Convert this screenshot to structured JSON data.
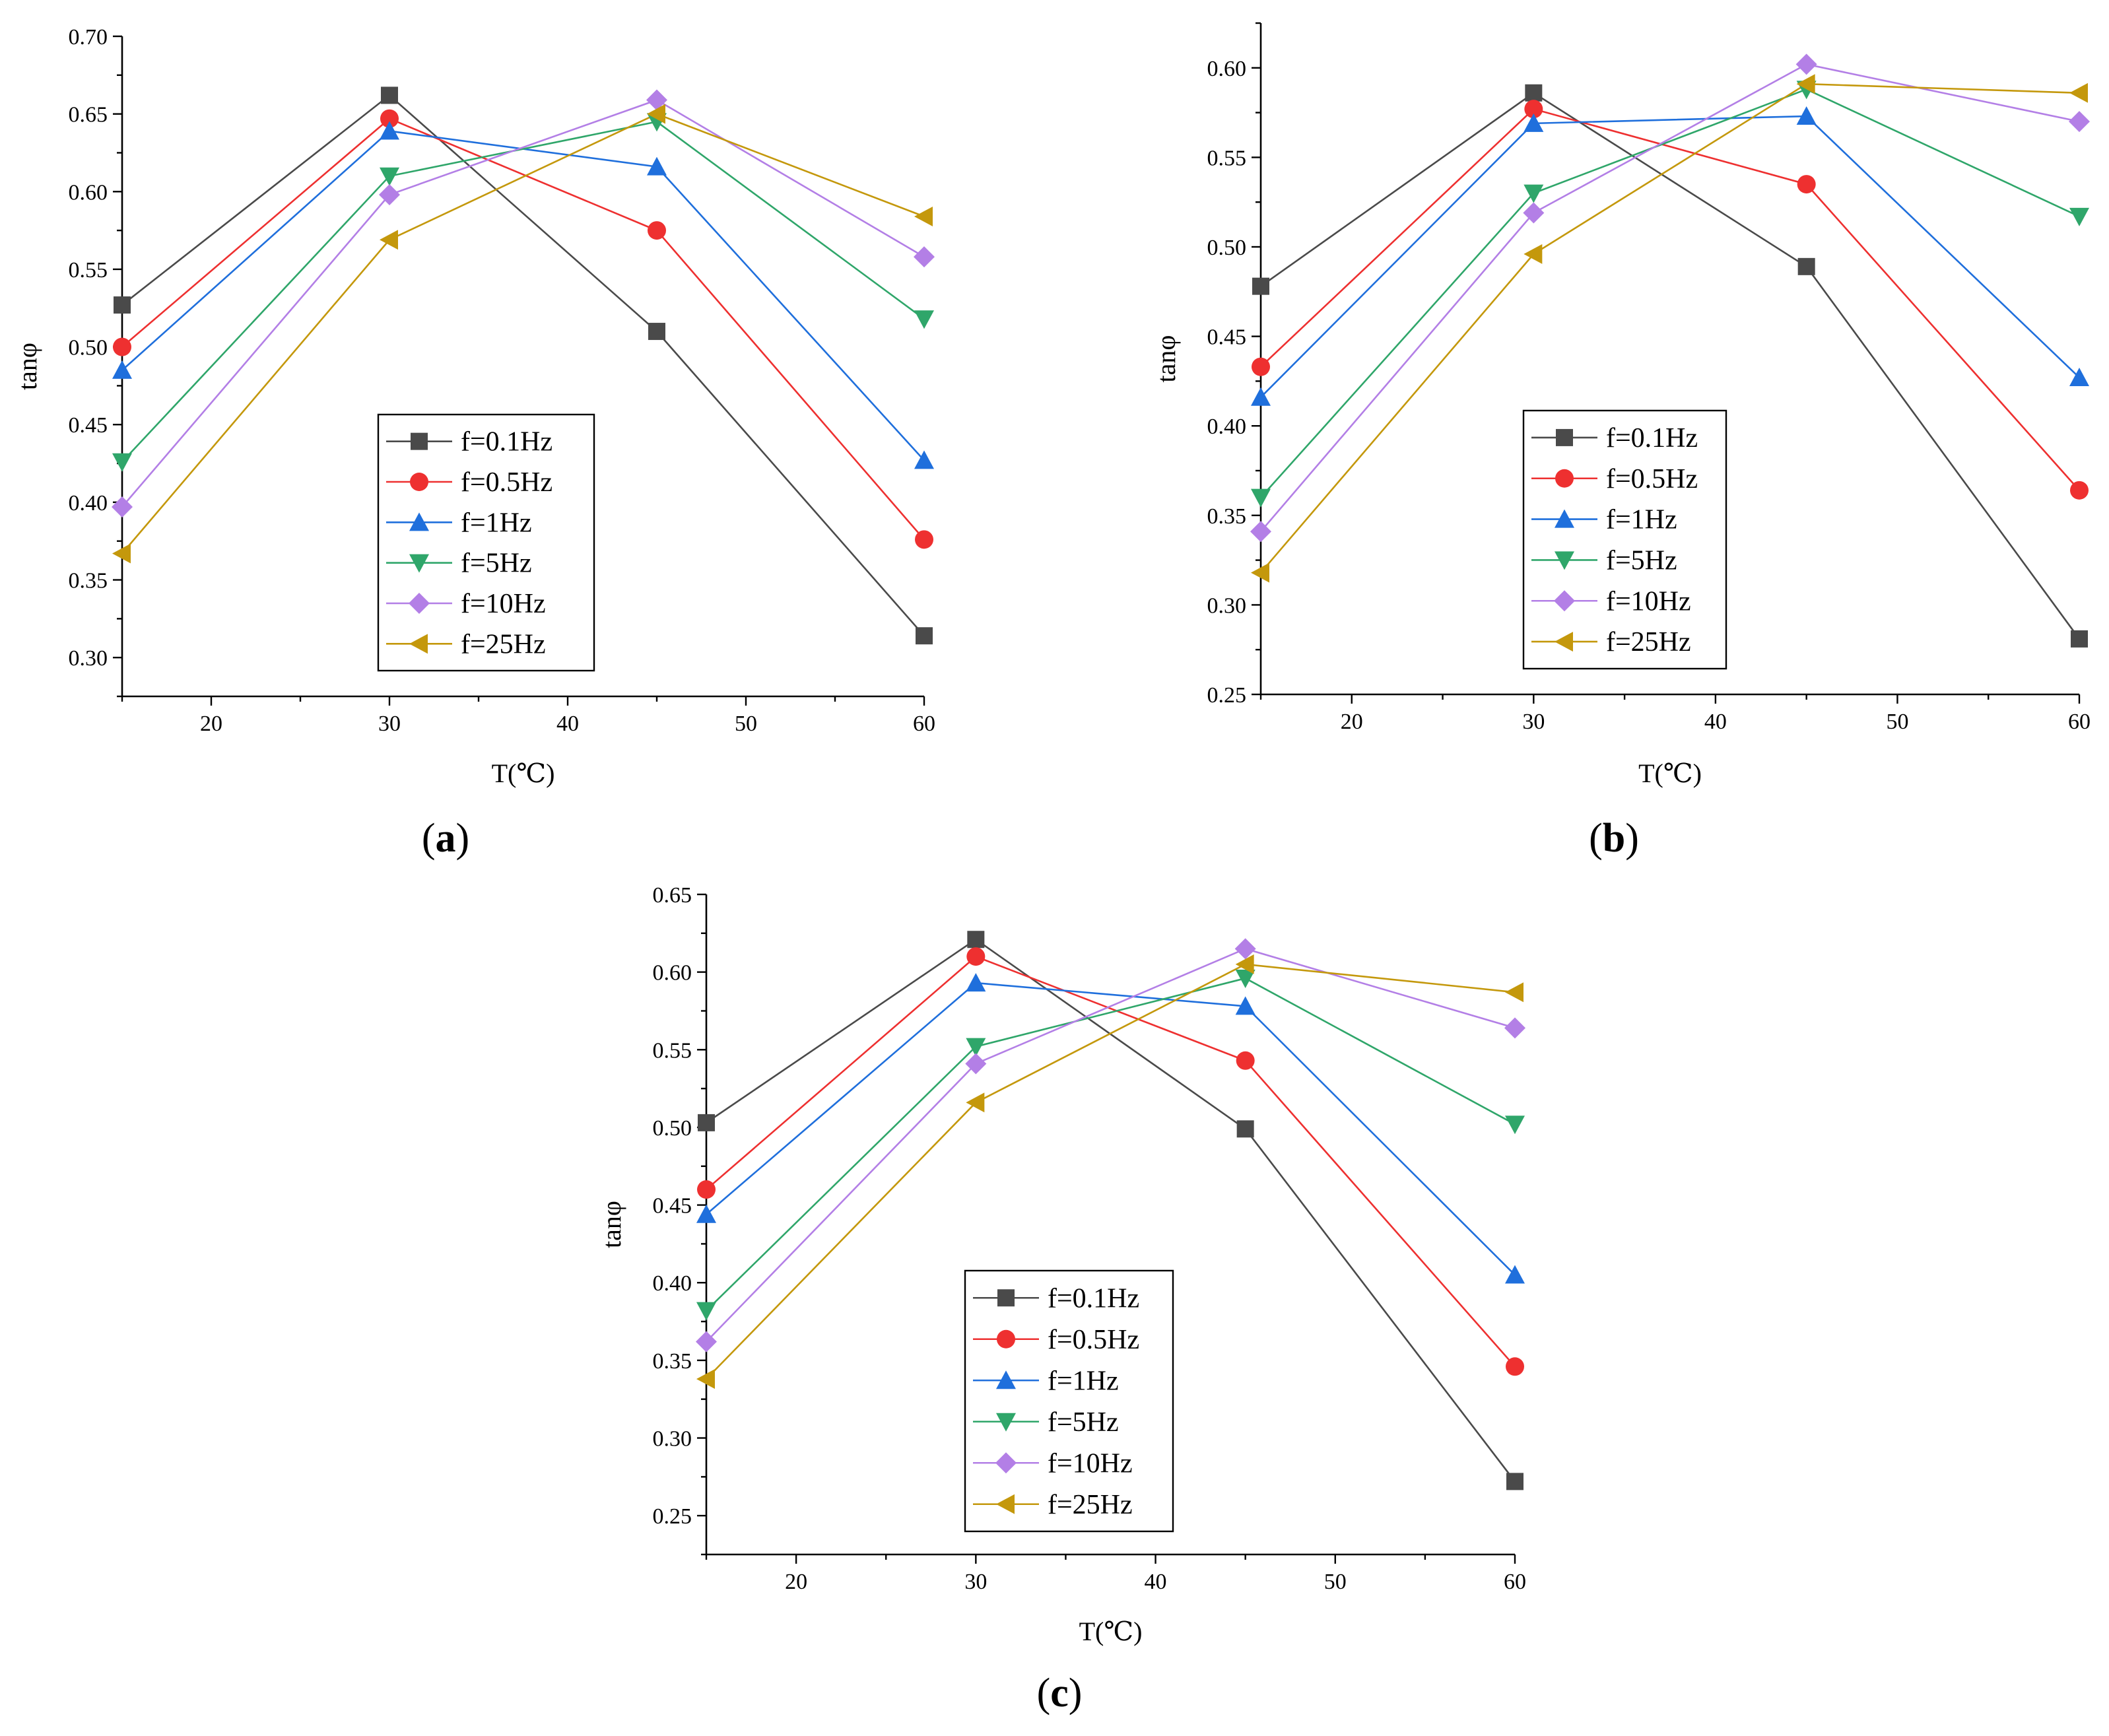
{
  "chart_data": [
    {
      "type": "line",
      "panel_label": "a",
      "xlabel": "T(℃)",
      "ylabel": "tanφ",
      "xlim": [
        15,
        60
      ],
      "ylim": [
        0.275,
        0.7
      ],
      "xticks": [
        20,
        30,
        40,
        50,
        60
      ],
      "xtick_labels": [
        "20",
        "30",
        "40",
        "50",
        "60"
      ],
      "yticks": [
        0.3,
        0.35,
        0.4,
        0.45,
        0.5,
        0.55,
        0.6,
        0.65,
        0.7
      ],
      "ytick_labels": [
        "0.30",
        "0.35",
        "0.40",
        "0.45",
        "0.50",
        "0.55",
        "0.60",
        "0.65",
        "0.70"
      ],
      "x": [
        15,
        30,
        45,
        60
      ],
      "legend_position": "center",
      "series": [
        {
          "name": "f=0.1Hz",
          "values": [
            0.527,
            0.662,
            0.51,
            0.314
          ]
        },
        {
          "name": "f=0.5Hz",
          "values": [
            0.5,
            0.647,
            0.575,
            0.376
          ]
        },
        {
          "name": "f=1Hz",
          "values": [
            0.485,
            0.639,
            0.616,
            0.427
          ]
        },
        {
          "name": "f=5Hz",
          "values": [
            0.426,
            0.61,
            0.645,
            0.518
          ]
        },
        {
          "name": "f=10Hz",
          "values": [
            0.397,
            0.598,
            0.659,
            0.558
          ]
        },
        {
          "name": "f=25Hz",
          "values": [
            0.367,
            0.569,
            0.65,
            0.584
          ]
        }
      ]
    },
    {
      "type": "line",
      "panel_label": "b",
      "xlabel": "T(℃)",
      "ylabel": "tanφ",
      "xlim": [
        15,
        60
      ],
      "ylim": [
        0.25,
        0.625
      ],
      "xticks": [
        20,
        30,
        40,
        50,
        60
      ],
      "xtick_labels": [
        "20",
        "30",
        "40",
        "50",
        "60"
      ],
      "yticks": [
        0.25,
        0.3,
        0.35,
        0.4,
        0.45,
        0.5,
        0.55,
        0.6
      ],
      "ytick_labels": [
        "0.25",
        "0.30",
        "0.35",
        "0.40",
        "0.45",
        "0.50",
        "0.55",
        "0.60"
      ],
      "x": [
        15,
        30,
        45,
        60
      ],
      "legend_position": "center",
      "series": [
        {
          "name": "f=0.1Hz",
          "values": [
            0.478,
            0.586,
            0.489,
            0.281
          ]
        },
        {
          "name": "f=0.5Hz",
          "values": [
            0.433,
            0.577,
            0.535,
            0.364
          ]
        },
        {
          "name": "f=1Hz",
          "values": [
            0.416,
            0.569,
            0.573,
            0.427
          ]
        },
        {
          "name": "f=5Hz",
          "values": [
            0.36,
            0.53,
            0.588,
            0.517
          ]
        },
        {
          "name": "f=10Hz",
          "values": [
            0.341,
            0.519,
            0.602,
            0.57
          ]
        },
        {
          "name": "f=25Hz",
          "values": [
            0.318,
            0.496,
            0.591,
            0.586
          ]
        }
      ]
    },
    {
      "type": "line",
      "panel_label": "c",
      "xlabel": "T(℃)",
      "ylabel": "tanφ",
      "xlim": [
        15,
        60
      ],
      "ylim": [
        0.225,
        0.65
      ],
      "xticks": [
        20,
        30,
        40,
        50,
        60
      ],
      "xtick_labels": [
        "20",
        "30",
        "40",
        "50",
        "60"
      ],
      "yticks": [
        0.25,
        0.3,
        0.35,
        0.4,
        0.45,
        0.5,
        0.55,
        0.6,
        0.65
      ],
      "ytick_labels": [
        "0.25",
        "0.30",
        "0.35",
        "0.40",
        "0.45",
        "0.50",
        "0.55",
        "0.60",
        "0.65"
      ],
      "x": [
        15,
        30,
        45,
        60
      ],
      "legend_position": "center",
      "series": [
        {
          "name": "f=0.1Hz",
          "values": [
            0.503,
            0.621,
            0.499,
            0.272
          ]
        },
        {
          "name": "f=0.5Hz",
          "values": [
            0.46,
            0.61,
            0.543,
            0.346
          ]
        },
        {
          "name": "f=1Hz",
          "values": [
            0.444,
            0.593,
            0.578,
            0.405
          ]
        },
        {
          "name": "f=5Hz",
          "values": [
            0.382,
            0.552,
            0.596,
            0.502
          ]
        },
        {
          "name": "f=10Hz",
          "values": [
            0.362,
            0.541,
            0.615,
            0.564
          ]
        },
        {
          "name": "f=25Hz",
          "values": [
            0.338,
            0.516,
            0.605,
            0.587
          ]
        }
      ]
    }
  ],
  "series_styles": [
    {
      "color": "#4a4a4a",
      "marker": "square"
    },
    {
      "color": "#ee3030",
      "marker": "circle"
    },
    {
      "color": "#1f6fdc",
      "marker": "triangle-up"
    },
    {
      "color": "#2fa66a",
      "marker": "triangle-down"
    },
    {
      "color": "#b37fe6",
      "marker": "diamond"
    },
    {
      "color": "#c4980c",
      "marker": "triangle-left"
    }
  ]
}
